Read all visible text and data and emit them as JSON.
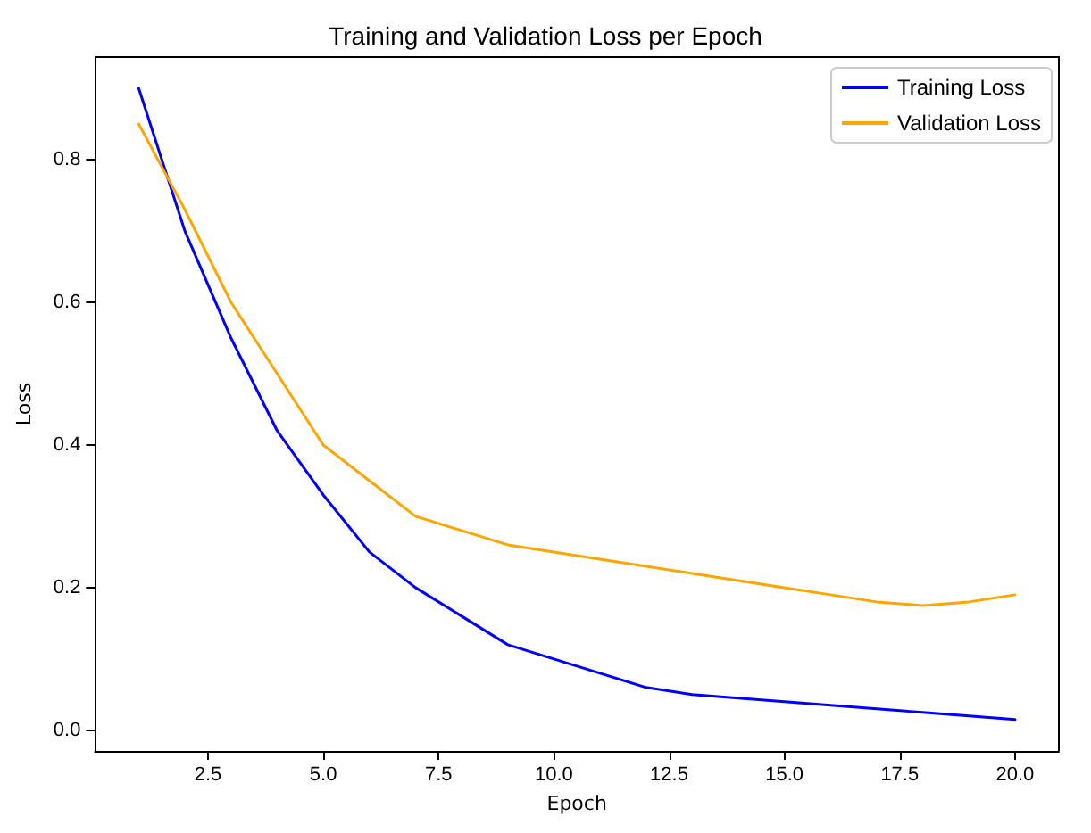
{
  "chart_data": {
    "type": "line",
    "title": "Training and Validation Loss per Epoch",
    "xlabel": "Epoch",
    "ylabel": "Loss",
    "x": [
      1,
      2,
      3,
      4,
      5,
      6,
      7,
      8,
      9,
      10,
      11,
      12,
      13,
      14,
      15,
      16,
      17,
      18,
      19,
      20
    ],
    "series": [
      {
        "name": "Training Loss",
        "color": "#0000ff",
        "values": [
          0.9,
          0.7,
          0.55,
          0.42,
          0.33,
          0.25,
          0.2,
          0.16,
          0.12,
          0.1,
          0.08,
          0.06,
          0.05,
          0.045,
          0.04,
          0.035,
          0.03,
          0.025,
          0.02,
          0.015
        ]
      },
      {
        "name": "Validation Loss",
        "color": "#ffa500",
        "values": [
          0.85,
          0.73,
          0.6,
          0.5,
          0.4,
          0.35,
          0.3,
          0.28,
          0.26,
          0.25,
          0.24,
          0.23,
          0.22,
          0.21,
          0.2,
          0.19,
          0.18,
          0.175,
          0.18,
          0.19
        ]
      }
    ],
    "xlim": [
      0.05,
      20.95
    ],
    "xticks": [
      {
        "value": 2.5,
        "label": "2.5"
      },
      {
        "value": 5,
        "label": "5.0"
      },
      {
        "value": 7.5,
        "label": "7.5"
      },
      {
        "value": 10,
        "label": "10.0"
      },
      {
        "value": 12.5,
        "label": "12.5"
      },
      {
        "value": 15,
        "label": "15.0"
      },
      {
        "value": 17.5,
        "label": "17.5"
      },
      {
        "value": 20,
        "label": "20.0"
      }
    ],
    "ylim": [
      -0.029,
      0.944
    ],
    "yticks": [
      {
        "value": 0,
        "label": "0.0"
      },
      {
        "value": 0.2,
        "label": "0.2"
      },
      {
        "value": 0.4,
        "label": "0.4"
      },
      {
        "value": 0.6,
        "label": "0.6"
      },
      {
        "value": 0.8,
        "label": "0.8"
      }
    ],
    "grid": false,
    "legend": "top right",
    "marker": "none",
    "line_style": "solid"
  }
}
